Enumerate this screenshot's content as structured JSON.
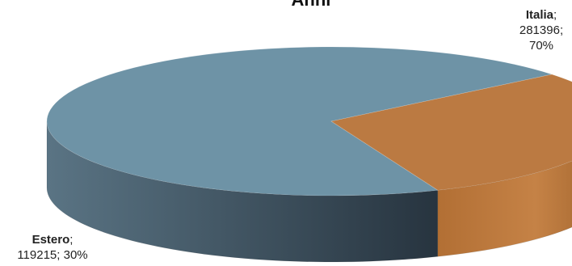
{
  "chart_data": {
    "type": "pie",
    "style": "3d",
    "title": "Anni",
    "series": [
      {
        "name": "",
        "categories": [
          "Italia",
          "Estero"
        ],
        "values": [
          281396,
          119215
        ],
        "percent_labels": [
          "70%",
          "30%"
        ]
      }
    ],
    "colors": {
      "Italia": "#6e93a6",
      "Estero": "#bb7a42"
    },
    "legend": "none",
    "data_labels": true
  }
}
